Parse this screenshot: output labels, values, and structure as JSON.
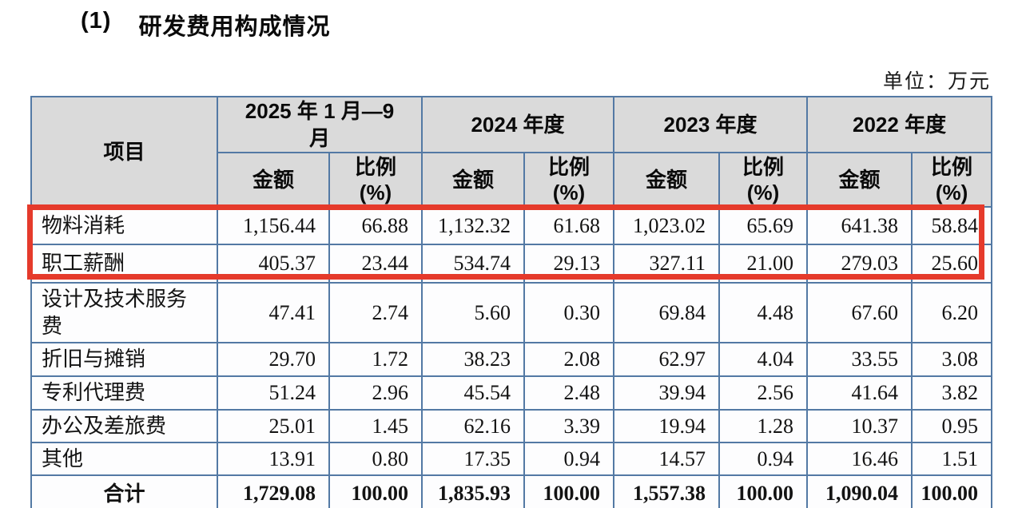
{
  "page": {
    "section_number": "(1)",
    "section_title": "研发费用构成情况",
    "unit_label": "单位：万元"
  },
  "table": {
    "header": {
      "item": "项目",
      "amount": "金额",
      "ratio_line1": "比例",
      "ratio_line2": "(%)",
      "periods": [
        "2025 年 1 月—9 月",
        "2024 年度",
        "2023 年度",
        "2022 年度"
      ]
    },
    "rows": [
      {
        "label": "物料消耗",
        "values": [
          "1,156.44",
          "66.88",
          "1,132.32",
          "61.68",
          "1,023.02",
          "65.69",
          "641.38",
          "58.84"
        ],
        "highlighted": true
      },
      {
        "label": "职工薪酬",
        "values": [
          "405.37",
          "23.44",
          "534.74",
          "29.13",
          "327.11",
          "21.00",
          "279.03",
          "25.60"
        ],
        "highlighted": true
      },
      {
        "label": "设计及技术服务费",
        "values": [
          "47.41",
          "2.74",
          "5.60",
          "0.30",
          "69.84",
          "4.48",
          "67.60",
          "6.20"
        ],
        "highlighted": false
      },
      {
        "label": "折旧与摊销",
        "values": [
          "29.70",
          "1.72",
          "38.23",
          "2.08",
          "62.97",
          "4.04",
          "33.55",
          "3.08"
        ],
        "highlighted": false
      },
      {
        "label": "专利代理费",
        "values": [
          "51.24",
          "2.96",
          "45.54",
          "2.48",
          "39.94",
          "2.56",
          "41.64",
          "3.82"
        ],
        "highlighted": false
      },
      {
        "label": "办公及差旅费",
        "values": [
          "25.01",
          "1.45",
          "62.16",
          "3.39",
          "19.94",
          "1.28",
          "10.37",
          "0.95"
        ],
        "highlighted": false
      },
      {
        "label": "其他",
        "values": [
          "13.91",
          "0.80",
          "17.35",
          "0.94",
          "14.57",
          "0.94",
          "16.46",
          "1.51"
        ],
        "highlighted": false
      },
      {
        "label": "合计",
        "values": [
          "1,729.08",
          "100.00",
          "1,835.93",
          "100.00",
          "1,557.38",
          "100.00",
          "1,090.04",
          "100.00"
        ],
        "is_total": true,
        "highlighted": false
      }
    ],
    "highlight_annotation": {
      "highlighted_rows": [
        "物料消耗",
        "职工薪酬"
      ],
      "color": "#e53a2b"
    }
  },
  "colors": {
    "table_border": "#5379a4",
    "header_background": "#dadada",
    "highlight_red": "#e53a2b",
    "page_background": "#ffffff"
  }
}
